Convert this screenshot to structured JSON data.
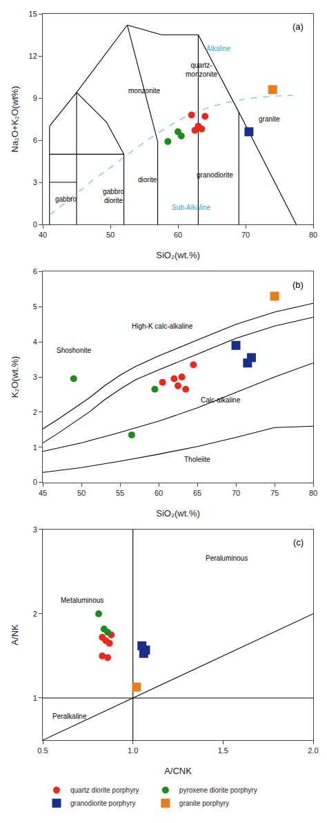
{
  "chart_data": [
    {
      "type": "scatter",
      "title": "(a)",
      "xlabel": "SiO₂(wt.%)",
      "ylabel": "Na₂O+K₂O(wt%)",
      "xlim": [
        40,
        80
      ],
      "ylim": [
        0,
        15
      ],
      "xticks": [
        40,
        50,
        60,
        70,
        80
      ],
      "yticks": [
        0,
        3,
        6,
        9,
        12,
        15
      ],
      "grid": false,
      "series": [
        {
          "type": "line",
          "color": "#000000",
          "x": [
            41,
            41
          ],
          "values": [
            0,
            7
          ]
        },
        {
          "type": "line",
          "color": "#000000",
          "x": [
            41,
            45
          ],
          "values": [
            7,
            9.4
          ]
        },
        {
          "type": "line",
          "color": "#000000",
          "x": [
            45,
            52.5
          ],
          "values": [
            9.4,
            14.2
          ]
        },
        {
          "type": "line",
          "color": "#000000",
          "x": [
            52.5,
            57.6
          ],
          "values": [
            14.2,
            13.5
          ]
        },
        {
          "type": "line",
          "color": "#000000",
          "x": [
            57.6,
            63
          ],
          "values": [
            13.5,
            13.5
          ]
        },
        {
          "type": "line",
          "color": "#000000",
          "x": [
            63,
            69
          ],
          "values": [
            13.5,
            8
          ]
        },
        {
          "type": "line",
          "color": "#000000",
          "x": [
            69,
            77.5
          ],
          "values": [
            8,
            0
          ]
        },
        {
          "type": "line",
          "color": "#000000",
          "x": [
            41,
            45
          ],
          "values": [
            3,
            3
          ]
        },
        {
          "type": "line",
          "color": "#000000",
          "x": [
            41,
            52
          ],
          "values": [
            5,
            5
          ]
        },
        {
          "type": "line",
          "color": "#000000",
          "x": [
            45,
            45
          ],
          "values": [
            0,
            9.4
          ]
        },
        {
          "type": "line",
          "color": "#000000",
          "x": [
            52,
            52
          ],
          "values": [
            0,
            5
          ]
        },
        {
          "type": "line",
          "color": "#000000",
          "x": [
            52,
            49.4
          ],
          "values": [
            5,
            7.3
          ]
        },
        {
          "type": "line",
          "color": "#000000",
          "x": [
            49.4,
            45
          ],
          "values": [
            7.3,
            9.4
          ]
        },
        {
          "type": "line",
          "color": "#000000",
          "x": [
            57,
            57
          ],
          "values": [
            0,
            5.9
          ]
        },
        {
          "type": "line",
          "color": "#000000",
          "x": [
            57,
            52.5
          ],
          "values": [
            5.9,
            14.2
          ]
        },
        {
          "type": "line",
          "color": "#000000",
          "x": [
            63,
            63
          ],
          "values": [
            0,
            13.5
          ]
        },
        {
          "type": "line",
          "color": "#000000",
          "x": [
            69,
            69
          ],
          "values": [
            0,
            8
          ]
        },
        {
          "type": "line",
          "color": "#55bbdd",
          "line_style": "dashed",
          "x": [
            41,
            43,
            45,
            47,
            49,
            51,
            53,
            55,
            57,
            59,
            61,
            63,
            65,
            67,
            69,
            71,
            73,
            75,
            77
          ],
          "values": [
            0.7,
            1.4,
            2.2,
            3.0,
            3.7,
            4.4,
            5.15,
            5.85,
            6.5,
            7.1,
            7.65,
            8.05,
            8.4,
            8.65,
            8.85,
            9.0,
            9.1,
            9.15,
            9.2
          ]
        },
        {
          "type": "scatter",
          "marker": "circle",
          "color": "#e8291c",
          "x": [
            62,
            64,
            63,
            62.5,
            63.5
          ],
          "values": [
            7.8,
            7.7,
            7.0,
            6.7,
            6.8
          ]
        },
        {
          "type": "scatter",
          "marker": "circle",
          "color": "#1f8a1f",
          "x": [
            58.5,
            60,
            60.5
          ],
          "values": [
            5.9,
            6.6,
            6.3
          ]
        },
        {
          "type": "scatter",
          "marker": "square",
          "color": "#1a2f8a",
          "x": [
            70.5
          ],
          "values": [
            6.6
          ]
        },
        {
          "type": "scatter",
          "marker": "square",
          "color": "#e87d1e",
          "x": [
            74
          ],
          "values": [
            9.6
          ]
        }
      ],
      "annotations": [
        {
          "text": "gabbro",
          "x": 43.5,
          "y": 1.8
        },
        {
          "text": "gabbro\ndiorite",
          "x": 50.5,
          "y": 2.0
        },
        {
          "text": "diorite",
          "x": 55.5,
          "y": 3.2
        },
        {
          "text": "monzonite",
          "x": 55.0,
          "y": 9.5
        },
        {
          "text": "quartz-\nmonzonite",
          "x": 63.5,
          "y": 11.0
        },
        {
          "text": "granite",
          "x": 73.5,
          "y": 7.5
        },
        {
          "text": "granodiorite",
          "x": 65.5,
          "y": 3.5
        },
        {
          "text": "Alkaline",
          "x": 66,
          "y": 12.5,
          "color": "#33aacc"
        },
        {
          "text": "Sub-Alkaline",
          "x": 62,
          "y": 1.2,
          "color": "#33aacc"
        }
      ]
    },
    {
      "type": "scatter",
      "title": "(b)",
      "xlabel": "SiO₂(wt.%)",
      "ylabel": "K₂O(wt.%)",
      "xlim": [
        45,
        80
      ],
      "ylim": [
        0,
        6
      ],
      "xticks": [
        45,
        50,
        55,
        60,
        65,
        70,
        75,
        80
      ],
      "yticks": [
        0,
        1,
        2,
        3,
        4,
        5,
        6
      ],
      "grid": false,
      "series": [
        {
          "type": "line",
          "color": "#000000",
          "x": [
            45,
            47,
            49,
            51,
            53,
            55,
            57,
            60,
            65,
            70,
            75,
            80
          ],
          "values": [
            1.52,
            1.8,
            2.1,
            2.4,
            2.75,
            3.05,
            3.3,
            3.6,
            4.05,
            4.5,
            4.85,
            5.1
          ]
        },
        {
          "type": "line",
          "color": "#000000",
          "x": [
            45,
            47,
            49,
            51,
            53,
            55,
            57,
            60,
            65,
            70,
            75,
            80
          ],
          "values": [
            1.12,
            1.4,
            1.7,
            2.0,
            2.35,
            2.65,
            2.92,
            3.2,
            3.65,
            4.1,
            4.45,
            4.7
          ]
        },
        {
          "type": "line",
          "color": "#000000",
          "x": [
            45,
            50,
            55,
            60,
            65,
            70,
            75,
            80
          ],
          "values": [
            0.88,
            1.12,
            1.42,
            1.74,
            2.12,
            2.56,
            3.0,
            3.4
          ]
        },
        {
          "type": "line",
          "color": "#000000",
          "x": [
            45,
            50,
            55,
            60,
            65,
            70,
            75,
            80
          ],
          "values": [
            0.28,
            0.42,
            0.6,
            0.8,
            1.02,
            1.28,
            1.56,
            1.6
          ]
        },
        {
          "type": "scatter",
          "marker": "circle",
          "color": "#e8291c",
          "x": [
            60.5,
            62,
            63,
            64.5,
            63.5,
            62.5
          ],
          "values": [
            2.85,
            2.95,
            3.0,
            3.35,
            2.65,
            2.75
          ]
        },
        {
          "type": "scatter",
          "marker": "circle",
          "color": "#1f8a1f",
          "x": [
            49,
            56.5,
            59.5
          ],
          "values": [
            2.95,
            1.35,
            2.65
          ]
        },
        {
          "type": "scatter",
          "marker": "square",
          "color": "#1a2f8a",
          "x": [
            70,
            72,
            71.5
          ],
          "values": [
            3.9,
            3.55,
            3.4
          ]
        },
        {
          "type": "scatter",
          "marker": "square",
          "color": "#e87d1e",
          "x": [
            75
          ],
          "values": [
            5.3
          ]
        }
      ],
      "annotations": [
        {
          "text": "Shoshonite",
          "x": 49,
          "y": 3.6
        },
        {
          "text": "High-K calc-alkaline",
          "x": 60.5,
          "y": 4.3
        },
        {
          "text": "Calc-alkaline",
          "x": 68,
          "y": 2.2
        },
        {
          "text": "Tholeiite",
          "x": 65,
          "y": 0.5
        }
      ]
    },
    {
      "type": "scatter",
      "title": "(c)",
      "xlabel": "A/CNK",
      "ylabel": "A/NK",
      "xlim": [
        0.5,
        2.0
      ],
      "ylim": [
        0.5,
        3.0
      ],
      "xticks": [
        0.5,
        {
          "value": 1,
          "label": "1.0"
        },
        1.5,
        {
          "value": 2,
          "label": "2.0"
        }
      ],
      "yticks": [
        1,
        2,
        3
      ],
      "grid": false,
      "legend": "bottom",
      "series": [
        {
          "type": "line",
          "color": "#000000",
          "x": [
            1.0,
            1.0
          ],
          "values": [
            0.5,
            3.0
          ]
        },
        {
          "type": "line",
          "color": "#000000",
          "x": [
            0.5,
            2.0
          ],
          "values": [
            1.0,
            1.0
          ]
        },
        {
          "type": "line",
          "color": "#000000",
          "x": [
            0.5,
            2.0
          ],
          "values": [
            0.5,
            2.0
          ]
        },
        {
          "type": "scatter",
          "marker": "circle",
          "color": "#e8291c",
          "name": "quartz diorite porphyry",
          "x": [
            0.83,
            0.85,
            0.87,
            0.83,
            0.86,
            0.88
          ],
          "values": [
            1.72,
            1.68,
            1.65,
            1.5,
            1.48,
            1.75
          ]
        },
        {
          "type": "scatter",
          "marker": "circle",
          "color": "#1f8a1f",
          "name": "pyroxene diorite porphyry",
          "x": [
            0.81,
            0.84,
            0.86
          ],
          "values": [
            2.0,
            1.82,
            1.78
          ]
        },
        {
          "type": "scatter",
          "marker": "square",
          "color": "#1a2f8a",
          "name": "granodiorite porphyry",
          "x": [
            1.05,
            1.07,
            1.06
          ],
          "values": [
            1.62,
            1.57,
            1.53
          ]
        },
        {
          "type": "scatter",
          "marker": "square",
          "color": "#e87d1e",
          "name": "granite porphyry",
          "x": [
            1.02
          ],
          "values": [
            1.13
          ]
        }
      ],
      "annotations": [
        {
          "text": "Metaluminous",
          "x": 0.72,
          "y": 2.1
        },
        {
          "text": "Peraluminous",
          "x": 1.52,
          "y": 2.6
        },
        {
          "text": "Peralkaline",
          "x": 0.65,
          "y": 0.72
        }
      ]
    }
  ]
}
